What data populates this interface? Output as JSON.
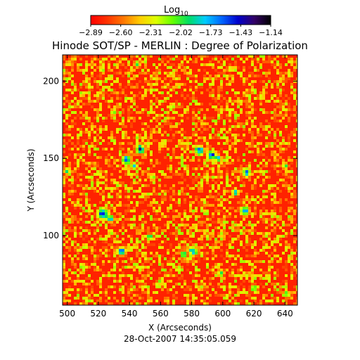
{
  "chart_data": {
    "type": "heatmap",
    "title": "Hinode SOT/SP - MERLIN : Degree of Polarization",
    "xlabel": "X (Arcseconds)",
    "ylabel": "Y (Arcseconds)",
    "timestamp": "28-Oct-2007 14:35:05.059",
    "xlim": [
      497,
      648
    ],
    "ylim": [
      55,
      217
    ],
    "x_ticks": [
      "500",
      "520",
      "540",
      "560",
      "580",
      "600",
      "620",
      "640"
    ],
    "y_ticks": [
      "100",
      "150",
      "200"
    ],
    "colorbar": {
      "label_base": "Log",
      "label_sub": "10",
      "range": [
        -2.89,
        -1.14
      ],
      "tick_labels": [
        "−2.89",
        "−2.60",
        "−2.31",
        "−2.02",
        "−1.73",
        "−1.43",
        "−1.14"
      ],
      "colors": [
        "#ff0000",
        "#ff3300",
        "#ff7700",
        "#ffcc00",
        "#ddff00",
        "#66ff00",
        "#00dd66",
        "#00ccff",
        "#0066ff",
        "#0000cc",
        "#330066",
        "#000000"
      ]
    },
    "features": [
      {
        "x": 523,
        "y": 114,
        "level": 0.85,
        "r": 5
      },
      {
        "x": 528,
        "y": 111,
        "level": 0.75,
        "r": 3
      },
      {
        "x": 538,
        "y": 149,
        "level": 0.8,
        "r": 4
      },
      {
        "x": 535,
        "y": 90,
        "level": 0.75,
        "r": 4
      },
      {
        "x": 547,
        "y": 156,
        "level": 0.8,
        "r": 4
      },
      {
        "x": 543,
        "y": 145,
        "level": 0.7,
        "r": 3
      },
      {
        "x": 553,
        "y": 99,
        "level": 0.6,
        "r": 3
      },
      {
        "x": 555,
        "y": 138,
        "level": 0.6,
        "r": 3
      },
      {
        "x": 581,
        "y": 90,
        "level": 0.75,
        "r": 4
      },
      {
        "x": 575,
        "y": 88,
        "level": 0.7,
        "r": 3
      },
      {
        "x": 585,
        "y": 155,
        "level": 0.85,
        "r": 4
      },
      {
        "x": 593,
        "y": 152,
        "level": 0.8,
        "r": 4
      },
      {
        "x": 597,
        "y": 150,
        "level": 0.75,
        "r": 3
      },
      {
        "x": 599,
        "y": 76,
        "level": 0.55,
        "r": 3
      },
      {
        "x": 608,
        "y": 128,
        "level": 0.65,
        "r": 3
      },
      {
        "x": 615,
        "y": 141,
        "level": 0.7,
        "r": 4
      },
      {
        "x": 614,
        "y": 116,
        "level": 0.75,
        "r": 4
      },
      {
        "x": 620,
        "y": 66,
        "level": 0.65,
        "r": 3
      },
      {
        "x": 640,
        "y": 145,
        "level": 0.55,
        "r": 3
      },
      {
        "x": 641,
        "y": 62,
        "level": 0.6,
        "r": 3
      },
      {
        "x": 500,
        "y": 142,
        "level": 0.6,
        "r": 3
      },
      {
        "x": 545,
        "y": 211,
        "level": 0.55,
        "r": 3
      },
      {
        "x": 568,
        "y": 184,
        "level": 0.5,
        "r": 3
      },
      {
        "x": 530,
        "y": 180,
        "level": 0.5,
        "r": 3
      },
      {
        "x": 605,
        "y": 208,
        "level": 0.5,
        "r": 3
      },
      {
        "x": 625,
        "y": 190,
        "level": 0.5,
        "r": 3
      },
      {
        "x": 510,
        "y": 80,
        "level": 0.5,
        "r": 3
      },
      {
        "x": 560,
        "y": 70,
        "level": 0.5,
        "r": 3
      }
    ]
  }
}
